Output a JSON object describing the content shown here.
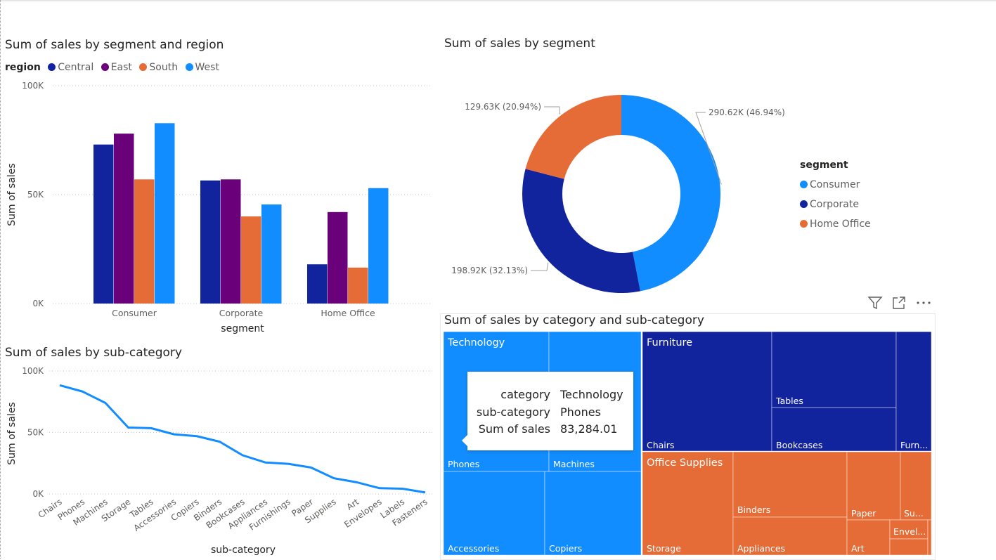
{
  "colors": {
    "central": "#12239e",
    "east": "#6b007b",
    "south": "#e66c37",
    "west": "#118dff",
    "consumer": "#118dff",
    "corporate": "#12239e",
    "home_office": "#e66c37"
  },
  "icons": [
    "filter-icon",
    "focus-mode-icon",
    "more-options-icon"
  ],
  "bar_visual": {
    "title": "Sum of sales by segment and region",
    "legend_title": "region",
    "legend": [
      "Central",
      "East",
      "South",
      "West"
    ]
  },
  "donut_visual": {
    "title": "Sum of sales by segment",
    "legend_title": "segment",
    "legend": [
      "Consumer",
      "Corporate",
      "Home Office"
    ]
  },
  "line_visual": {
    "title": "Sum of sales by sub-category"
  },
  "treemap_visual": {
    "title": "Sum of sales by category and sub-category",
    "tooltip": {
      "rows": [
        {
          "key": "category",
          "value": "Technology"
        },
        {
          "key": "sub-category",
          "value": "Phones"
        },
        {
          "key": "Sum of sales",
          "value": "83,284.01"
        }
      ]
    }
  },
  "chart_data": [
    {
      "type": "bar",
      "title": "Sum of sales by segment and region",
      "xlabel": "segment",
      "ylabel": "Sum of sales",
      "categories": [
        "Consumer",
        "Corporate",
        "Home Office"
      ],
      "series": [
        {
          "name": "Central",
          "values": [
            73000,
            56500,
            18000
          ]
        },
        {
          "name": "East",
          "values": [
            78000,
            57000,
            42000
          ]
        },
        {
          "name": "South",
          "values": [
            57000,
            40000,
            16500
          ]
        },
        {
          "name": "West",
          "values": [
            82800,
            45500,
            53000
          ]
        }
      ],
      "ylim": [
        0,
        100000
      ],
      "yticks": [
        "0K",
        "50K",
        "100K"
      ],
      "grid": true,
      "legend_position": "top-left"
    },
    {
      "type": "pie",
      "title": "Sum of sales by segment",
      "donut": true,
      "categories": [
        "Consumer",
        "Corporate",
        "Home Office"
      ],
      "values": [
        290620,
        198920,
        129630
      ],
      "data_labels": [
        "290.62K (46.94%)",
        "198.92K (32.13%)",
        "129.63K (20.94%)"
      ],
      "legend_position": "right"
    },
    {
      "type": "line",
      "title": "Sum of sales by sub-category",
      "xlabel": "sub-category",
      "ylabel": "Sum of sales",
      "categories": [
        "Chairs",
        "Phones",
        "Machines",
        "Storage",
        "Tables",
        "Accessories",
        "Copiers",
        "Binders",
        "Bookcases",
        "Appliances",
        "Furnishings",
        "Paper",
        "Supplies",
        "Art",
        "Envelopes",
        "Labels",
        "Fasteners"
      ],
      "values": [
        88400,
        83284,
        74000,
        54000,
        53500,
        48500,
        47000,
        42500,
        31500,
        25600,
        24500,
        21500,
        12800,
        9500,
        4700,
        4300,
        1200
      ],
      "ylim": [
        0,
        100000
      ],
      "yticks": [
        "0K",
        "50K",
        "100K"
      ],
      "grid": true
    },
    {
      "type": "treemap",
      "title": "Sum of sales by category and sub-category",
      "groups": [
        {
          "name": "Technology",
          "color": "#118dff",
          "children": [
            "Phones",
            "Machines",
            "Accessories",
            "Copiers"
          ]
        },
        {
          "name": "Furniture",
          "color": "#12239e",
          "children": [
            "Chairs",
            "Tables",
            "Bookcases",
            "Furn..."
          ]
        },
        {
          "name": "Office Supplies",
          "color": "#e66c37",
          "children": [
            "Storage",
            "Binders",
            "Appliances",
            "Paper",
            "Su...",
            "Art",
            "Envel..."
          ]
        }
      ]
    }
  ]
}
